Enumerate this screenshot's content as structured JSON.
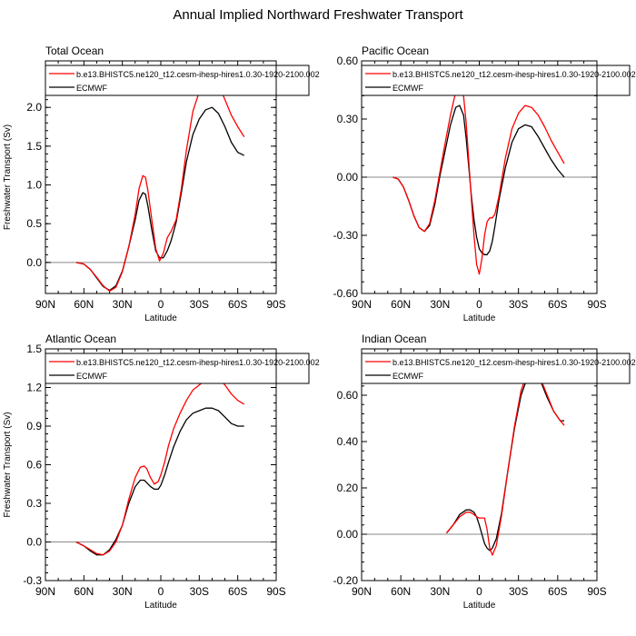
{
  "figure_title": "Annual Implied Northward Freshwater Transport",
  "legend_labels": [
    "b.e13.BHISTC5.ne120_t12.cesm-ihesp-hires1.0.30-1920-2100.002",
    "ECMWF"
  ],
  "series_colors": [
    "#ff0000",
    "#000000"
  ],
  "chart_data": [
    {
      "type": "line",
      "title": "Total Ocean",
      "xlabel": "Latitude",
      "ylabel": "Freshwater Transport (Sv)",
      "xlim": [
        90,
        -90
      ],
      "ylim": [
        -0.4,
        2.6
      ],
      "x_ticks": [
        90,
        60,
        30,
        0,
        -30,
        -60,
        -90
      ],
      "x_tick_labels": [
        "90N",
        "60N",
        "30N",
        "0",
        "30S",
        "60S",
        "90S"
      ],
      "y_ticks": [
        0,
        0.5,
        1,
        1.5,
        2
      ],
      "y_tick_labels": [
        "0.0",
        "0.5",
        "1.0",
        "1.5",
        "2.0"
      ],
      "series": [
        {
          "name": "b.e13.BHISTC5.ne120_t12.cesm-ihesp-hires1.0.30-1920-2100.002",
          "x": [
            66,
            60,
            55,
            50,
            45,
            40,
            35,
            30,
            25,
            20,
            17,
            14,
            12,
            10,
            7,
            4,
            1,
            -2,
            -5,
            -8,
            -12,
            -16,
            -20,
            -25,
            -30,
            -35,
            -40,
            -45,
            -50,
            -55,
            -60,
            -65
          ],
          "y": [
            0,
            -0.02,
            -0.09,
            -0.19,
            -0.3,
            -0.37,
            -0.32,
            -0.12,
            0.2,
            0.62,
            0.95,
            1.12,
            1.1,
            0.92,
            0.55,
            0.18,
            0.02,
            0.12,
            0.32,
            0.4,
            0.55,
            0.95,
            1.45,
            1.95,
            2.2,
            2.32,
            2.36,
            2.3,
            2.1,
            1.9,
            1.75,
            1.62
          ]
        },
        {
          "name": "ECMWF",
          "x": [
            66,
            60,
            55,
            50,
            45,
            40,
            35,
            30,
            25,
            20,
            17,
            14,
            12,
            10,
            7,
            4,
            1,
            -2,
            -5,
            -8,
            -12,
            -16,
            -20,
            -25,
            -30,
            -35,
            -40,
            -45,
            -50,
            -55,
            -60,
            -65
          ],
          "y": [
            0,
            -0.02,
            -0.09,
            -0.2,
            -0.31,
            -0.36,
            -0.3,
            -0.11,
            0.2,
            0.55,
            0.8,
            0.9,
            0.88,
            0.72,
            0.42,
            0.15,
            0.06,
            0.06,
            0.15,
            0.28,
            0.52,
            0.9,
            1.3,
            1.65,
            1.85,
            1.97,
            2.0,
            1.92,
            1.75,
            1.55,
            1.42,
            1.38
          ]
        }
      ]
    },
    {
      "type": "line",
      "title": "Pacific Ocean",
      "xlabel": "Latitude",
      "ylabel": "",
      "xlim": [
        90,
        -90
      ],
      "ylim": [
        -0.6,
        0.6
      ],
      "x_ticks": [
        90,
        60,
        30,
        0,
        -30,
        -60,
        -90
      ],
      "x_tick_labels": [
        "90N",
        "60N",
        "30N",
        "0",
        "30S",
        "60S",
        "90S"
      ],
      "y_ticks": [
        -0.6,
        -0.3,
        0,
        0.3,
        0.6
      ],
      "y_tick_labels": [
        "-0.60",
        "-0.30",
        "0.00",
        "0.30",
        "0.60"
      ],
      "series": [
        {
          "name": "b.e13.BHISTC5.ne120_t12.cesm-ihesp-hires1.0.30-1920-2100.002",
          "x": [
            66,
            62,
            58,
            54,
            50,
            46,
            42,
            38,
            34,
            30,
            26,
            22,
            18,
            15,
            12,
            10,
            8,
            6,
            4,
            2,
            0,
            -2,
            -4,
            -6,
            -8,
            -10,
            -12,
            -15,
            -20,
            -25,
            -30,
            -35,
            -40,
            -45,
            -50,
            -55,
            -60,
            -65
          ],
          "y": [
            0,
            -0.01,
            -0.05,
            -0.12,
            -0.2,
            -0.26,
            -0.28,
            -0.24,
            -0.12,
            0.03,
            0.18,
            0.32,
            0.44,
            0.48,
            0.42,
            0.28,
            0.08,
            -0.12,
            -0.3,
            -0.45,
            -0.5,
            -0.42,
            -0.3,
            -0.23,
            -0.21,
            -0.21,
            -0.19,
            -0.1,
            0.1,
            0.25,
            0.33,
            0.37,
            0.36,
            0.32,
            0.26,
            0.19,
            0.13,
            0.07
          ]
        },
        {
          "name": "ECMWF",
          "x": [
            66,
            62,
            58,
            54,
            50,
            46,
            42,
            38,
            34,
            30,
            26,
            22,
            18,
            15,
            12,
            10,
            8,
            6,
            4,
            2,
            0,
            -2,
            -4,
            -6,
            -8,
            -10,
            -12,
            -15,
            -20,
            -25,
            -30,
            -35,
            -40,
            -45,
            -50,
            -55,
            -60,
            -65
          ],
          "y": [
            0,
            -0.01,
            -0.05,
            -0.12,
            -0.2,
            -0.26,
            -0.28,
            -0.25,
            -0.14,
            0.01,
            0.14,
            0.27,
            0.36,
            0.37,
            0.32,
            0.2,
            0.05,
            -0.1,
            -0.22,
            -0.31,
            -0.37,
            -0.39,
            -0.4,
            -0.4,
            -0.38,
            -0.33,
            -0.25,
            -0.12,
            0.05,
            0.18,
            0.25,
            0.27,
            0.26,
            0.21,
            0.15,
            0.09,
            0.04,
            0
          ]
        }
      ]
    },
    {
      "type": "line",
      "title": "Atlantic Ocean",
      "xlabel": "Latitude",
      "ylabel": "Freshwater Transport (Sv)",
      "xlim": [
        90,
        -90
      ],
      "ylim": [
        -0.3,
        1.5
      ],
      "x_ticks": [
        90,
        60,
        30,
        0,
        -30,
        -60,
        -90
      ],
      "x_tick_labels": [
        "90N",
        "60N",
        "30N",
        "0",
        "30S",
        "60S",
        "90S"
      ],
      "y_ticks": [
        -0.3,
        0,
        0.3,
        0.6,
        0.9,
        1.2,
        1.5
      ],
      "y_tick_labels": [
        "-0.3",
        "0.0",
        "0.3",
        "0.6",
        "0.9",
        "1.2",
        "1.5"
      ],
      "series": [
        {
          "name": "b.e13.BHISTC5.ne120_t12.cesm-ihesp-hires1.0.30-1920-2100.002",
          "x": [
            66,
            60,
            55,
            50,
            45,
            40,
            35,
            30,
            25,
            20,
            16,
            13,
            11,
            8,
            5,
            2,
            0,
            -3,
            -6,
            -10,
            -15,
            -20,
            -25,
            -30,
            -35,
            -40,
            -45,
            -50,
            -55,
            -60,
            -65
          ],
          "y": [
            0,
            -0.03,
            -0.06,
            -0.09,
            -0.1,
            -0.07,
            0,
            0.13,
            0.33,
            0.5,
            0.58,
            0.59,
            0.57,
            0.5,
            0.45,
            0.47,
            0.52,
            0.62,
            0.75,
            0.88,
            1.0,
            1.1,
            1.18,
            1.22,
            1.26,
            1.28,
            1.27,
            1.22,
            1.15,
            1.1,
            1.07
          ]
        },
        {
          "name": "ECMWF",
          "x": [
            66,
            60,
            55,
            50,
            45,
            40,
            35,
            30,
            25,
            20,
            16,
            13,
            11,
            8,
            5,
            2,
            0,
            -3,
            -6,
            -10,
            -15,
            -20,
            -25,
            -30,
            -35,
            -40,
            -45,
            -50,
            -55,
            -60,
            -65
          ],
          "y": [
            0,
            -0.03,
            -0.07,
            -0.1,
            -0.1,
            -0.06,
            0.02,
            0.13,
            0.3,
            0.43,
            0.48,
            0.48,
            0.46,
            0.43,
            0.41,
            0.41,
            0.44,
            0.52,
            0.62,
            0.74,
            0.86,
            0.95,
            1.0,
            1.02,
            1.04,
            1.04,
            1.02,
            0.97,
            0.92,
            0.9,
            0.9
          ]
        }
      ]
    },
    {
      "type": "line",
      "title": "Indian Ocean",
      "xlabel": "Latitude",
      "ylabel": "",
      "xlim": [
        90,
        -90
      ],
      "ylim": [
        -0.2,
        0.8
      ],
      "x_ticks": [
        90,
        60,
        30,
        0,
        -30,
        -60,
        -90
      ],
      "x_tick_labels": [
        "90N",
        "60N",
        "30N",
        "0",
        "30S",
        "60S",
        "90S"
      ],
      "y_ticks": [
        -0.2,
        0,
        0.2,
        0.4,
        0.6
      ],
      "y_tick_labels": [
        "-0.20",
        "0.00",
        "0.20",
        "0.40",
        "0.60"
      ],
      "series": [
        {
          "name": "b.e13.BHISTC5.ne120_t12.cesm-ihesp-hires1.0.30-1920-2100.002",
          "x": [
            25,
            20,
            15,
            10,
            7,
            4,
            2,
            0,
            -2,
            -4,
            -6,
            -8,
            -10,
            -13,
            -17,
            -22,
            -27,
            -32,
            -37,
            -42,
            -47,
            -52,
            -57,
            -62,
            -65
          ],
          "y": [
            0.005,
            0.04,
            0.075,
            0.095,
            0.095,
            0.085,
            0.075,
            0.07,
            0.07,
            0.07,
            0.02,
            -0.06,
            -0.09,
            -0.05,
            0.08,
            0.28,
            0.47,
            0.62,
            0.7,
            0.72,
            0.67,
            0.6,
            0.53,
            0.49,
            0.47
          ]
        },
        {
          "name": "ECMWF",
          "x": [
            25,
            20,
            15,
            10,
            7,
            4,
            2,
            0,
            -2,
            -4,
            -6,
            -8,
            -10,
            -13,
            -17,
            -22,
            -27,
            -32,
            -37,
            -42,
            -47,
            -52,
            -57,
            -62,
            -65
          ],
          "y": [
            0.005,
            0.04,
            0.085,
            0.105,
            0.105,
            0.095,
            0.075,
            0.04,
            0.0,
            -0.04,
            -0.06,
            -0.07,
            -0.06,
            -0.02,
            0.09,
            0.28,
            0.46,
            0.6,
            0.68,
            0.7,
            0.66,
            0.59,
            0.53,
            0.49,
            0.49
          ]
        }
      ]
    }
  ]
}
